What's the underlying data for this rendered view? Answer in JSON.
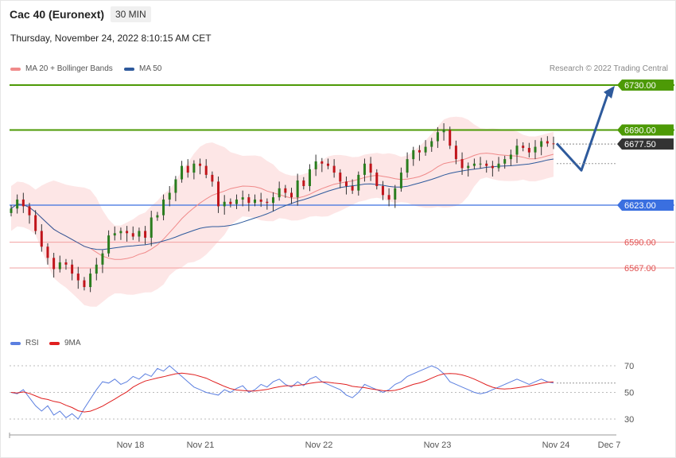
{
  "header": {
    "title": "Cac 40 (Euronext)",
    "timeframe": "30 MIN",
    "datetime": "Thursday, November 24, 2022 8:10:15 AM CET",
    "credit": "Research © 2022 Trading Central"
  },
  "colors": {
    "resistance": "#4d9a06",
    "support": "#3a6fe0",
    "current": "#333333",
    "lower": "#e05050",
    "bb_fill": "#fde3e3",
    "ma20": "#f08a8a",
    "ma50": "#2e5a9c",
    "bull": "#2a7d1e",
    "bear": "#c0141a",
    "arrow": "#2e5a9c",
    "rsi": "#5b7fe0",
    "rsi_ma": "#e02020"
  },
  "chart_data": [
    {
      "type": "candlestick",
      "legend": [
        {
          "name": "MA 20 + Bollinger Bands",
          "color": "#f08a8a"
        },
        {
          "name": "MA 50",
          "color": "#2e5a9c"
        }
      ],
      "levels": [
        {
          "value": 6730.0,
          "label": "6730.00",
          "kind": "resistance"
        },
        {
          "value": 6690.0,
          "label": "6690.00",
          "kind": "resistance"
        },
        {
          "value": 6677.5,
          "label": "6677.50",
          "kind": "current"
        },
        {
          "value": 6623.0,
          "label": "6623.00",
          "kind": "support"
        },
        {
          "value": 6590.0,
          "label": "6590.00",
          "kind": "lower"
        },
        {
          "value": 6567.0,
          "label": "6567.00",
          "kind": "lower"
        }
      ],
      "ylim": [
        6520,
        6745
      ],
      "x_labels": [
        "Nov 18",
        "Nov 21",
        "Nov 22",
        "Nov 23",
        "Nov 24",
        "Dec 7"
      ],
      "closes": [
        6620,
        6628,
        6622,
        6614,
        6600,
        6586,
        6576,
        6566,
        6572,
        6570,
        6562,
        6556,
        6550,
        6562,
        6570,
        6580,
        6596,
        6598,
        6600,
        6598,
        6595,
        6600,
        6594,
        6612,
        6614,
        6628,
        6634,
        6646,
        6658,
        6652,
        6660,
        6658,
        6650,
        6644,
        6622,
        6626,
        6624,
        6628,
        6630,
        6625,
        6628,
        6626,
        6625,
        6630,
        6638,
        6634,
        6630,
        6645,
        6640,
        6655,
        6662,
        6660,
        6658,
        6652,
        6644,
        6640,
        6636,
        6650,
        6660,
        6652,
        6640,
        6632,
        6628,
        6638,
        6652,
        6664,
        6672,
        6670,
        6675,
        6680,
        6688,
        6690,
        6676,
        6664,
        6656,
        6658,
        6660,
        6660,
        6658,
        6656,
        6660,
        6664,
        6668,
        6676,
        6674,
        6670,
        6675,
        6680,
        6678,
        6677.5
      ],
      "rsi": {
        "ylim": [
          20,
          80
        ],
        "ticks": [
          70,
          50,
          30
        ],
        "legend": [
          {
            "name": "RSI",
            "color": "#5b7fe0"
          },
          {
            "name": "9MA",
            "color": "#e02020"
          }
        ],
        "values": [
          50,
          49,
          52,
          46,
          40,
          36,
          40,
          33,
          36,
          31,
          34,
          30,
          38,
          45,
          52,
          58,
          57,
          60,
          56,
          58,
          62,
          60,
          64,
          62,
          68,
          66,
          70,
          66,
          62,
          58,
          54,
          52,
          50,
          49,
          48,
          52,
          50,
          53,
          55,
          50,
          52,
          56,
          54,
          58,
          60,
          56,
          54,
          58,
          55,
          60,
          62,
          58,
          56,
          54,
          52,
          48,
          46,
          50,
          56,
          54,
          52,
          50,
          52,
          56,
          58,
          62,
          64,
          66,
          68,
          70,
          68,
          64,
          58,
          56,
          54,
          52,
          50,
          49,
          50,
          52,
          54,
          56,
          58,
          60,
          58,
          56,
          58,
          60,
          58,
          57
        ]
      }
    }
  ]
}
